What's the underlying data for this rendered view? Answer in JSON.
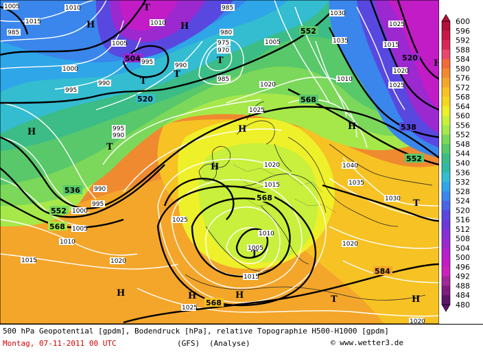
{
  "map": {
    "geopotential_labels": [
      "552",
      "504",
      "520",
      "536",
      "552",
      "568",
      "568",
      "568",
      "568",
      "584",
      "552",
      "538",
      "520"
    ],
    "pressure_labels": [
      "1005",
      "1015",
      "1010",
      "985",
      "1010",
      "1005",
      "1000",
      "995",
      "990",
      "995",
      "985",
      "975",
      "970",
      "980",
      "985",
      "990",
      "1005",
      "1030",
      "1035",
      "1010",
      "1015",
      "1020",
      "1025",
      "995",
      "990",
      "1020",
      "1025",
      "1015",
      "1040",
      "1035",
      "1030",
      "990",
      "995",
      "1000",
      "1005",
      "1010",
      "1015",
      "1020",
      "1025",
      "1010",
      "1005",
      "1015",
      "1025",
      "1020",
      "1020",
      "1025",
      "1020"
    ],
    "systems": {
      "highs": [
        "H",
        "H",
        "H",
        "H",
        "H",
        "H",
        "H",
        "H",
        "H",
        "H",
        "H"
      ],
      "lows": [
        "T",
        "T",
        "T",
        "T",
        "T",
        "T",
        "T",
        "T"
      ]
    }
  },
  "legend": {
    "values": [
      "600",
      "596",
      "592",
      "588",
      "584",
      "580",
      "576",
      "572",
      "568",
      "564",
      "560",
      "556",
      "552",
      "548",
      "544",
      "540",
      "536",
      "532",
      "528",
      "524",
      "520",
      "516",
      "512",
      "508",
      "504",
      "500",
      "496",
      "492",
      "488",
      "484",
      "480"
    ],
    "colors": [
      "#b0103a",
      "#c8184a",
      "#d8285a",
      "#e8486a",
      "#f06a3a",
      "#f08a30",
      "#f4a62a",
      "#f6c224",
      "#f4d820",
      "#eef02a",
      "#c8f03c",
      "#a6e84a",
      "#7cd85a",
      "#58c86a",
      "#3cbc86",
      "#30b8a8",
      "#34bcd0",
      "#2ea6e8",
      "#3a86ec",
      "#4a64e8",
      "#5848e0",
      "#6a3ad8",
      "#8430d4",
      "#9c28d0",
      "#b222cc",
      "#c21cc6",
      "#cc22bc",
      "#a02898",
      "#7e1c80",
      "#5c1468"
    ]
  },
  "footer": {
    "line1": "500 hPa Geopotential [gpdm], Bodendruck [hPa], relative Topographie H500-H1000 [gpdm]",
    "date": "Montag, 07-11-2011  00 UTC",
    "model": "(GFS)",
    "analysis": "(Analyse)",
    "credit": "© www.wetter3.de"
  }
}
